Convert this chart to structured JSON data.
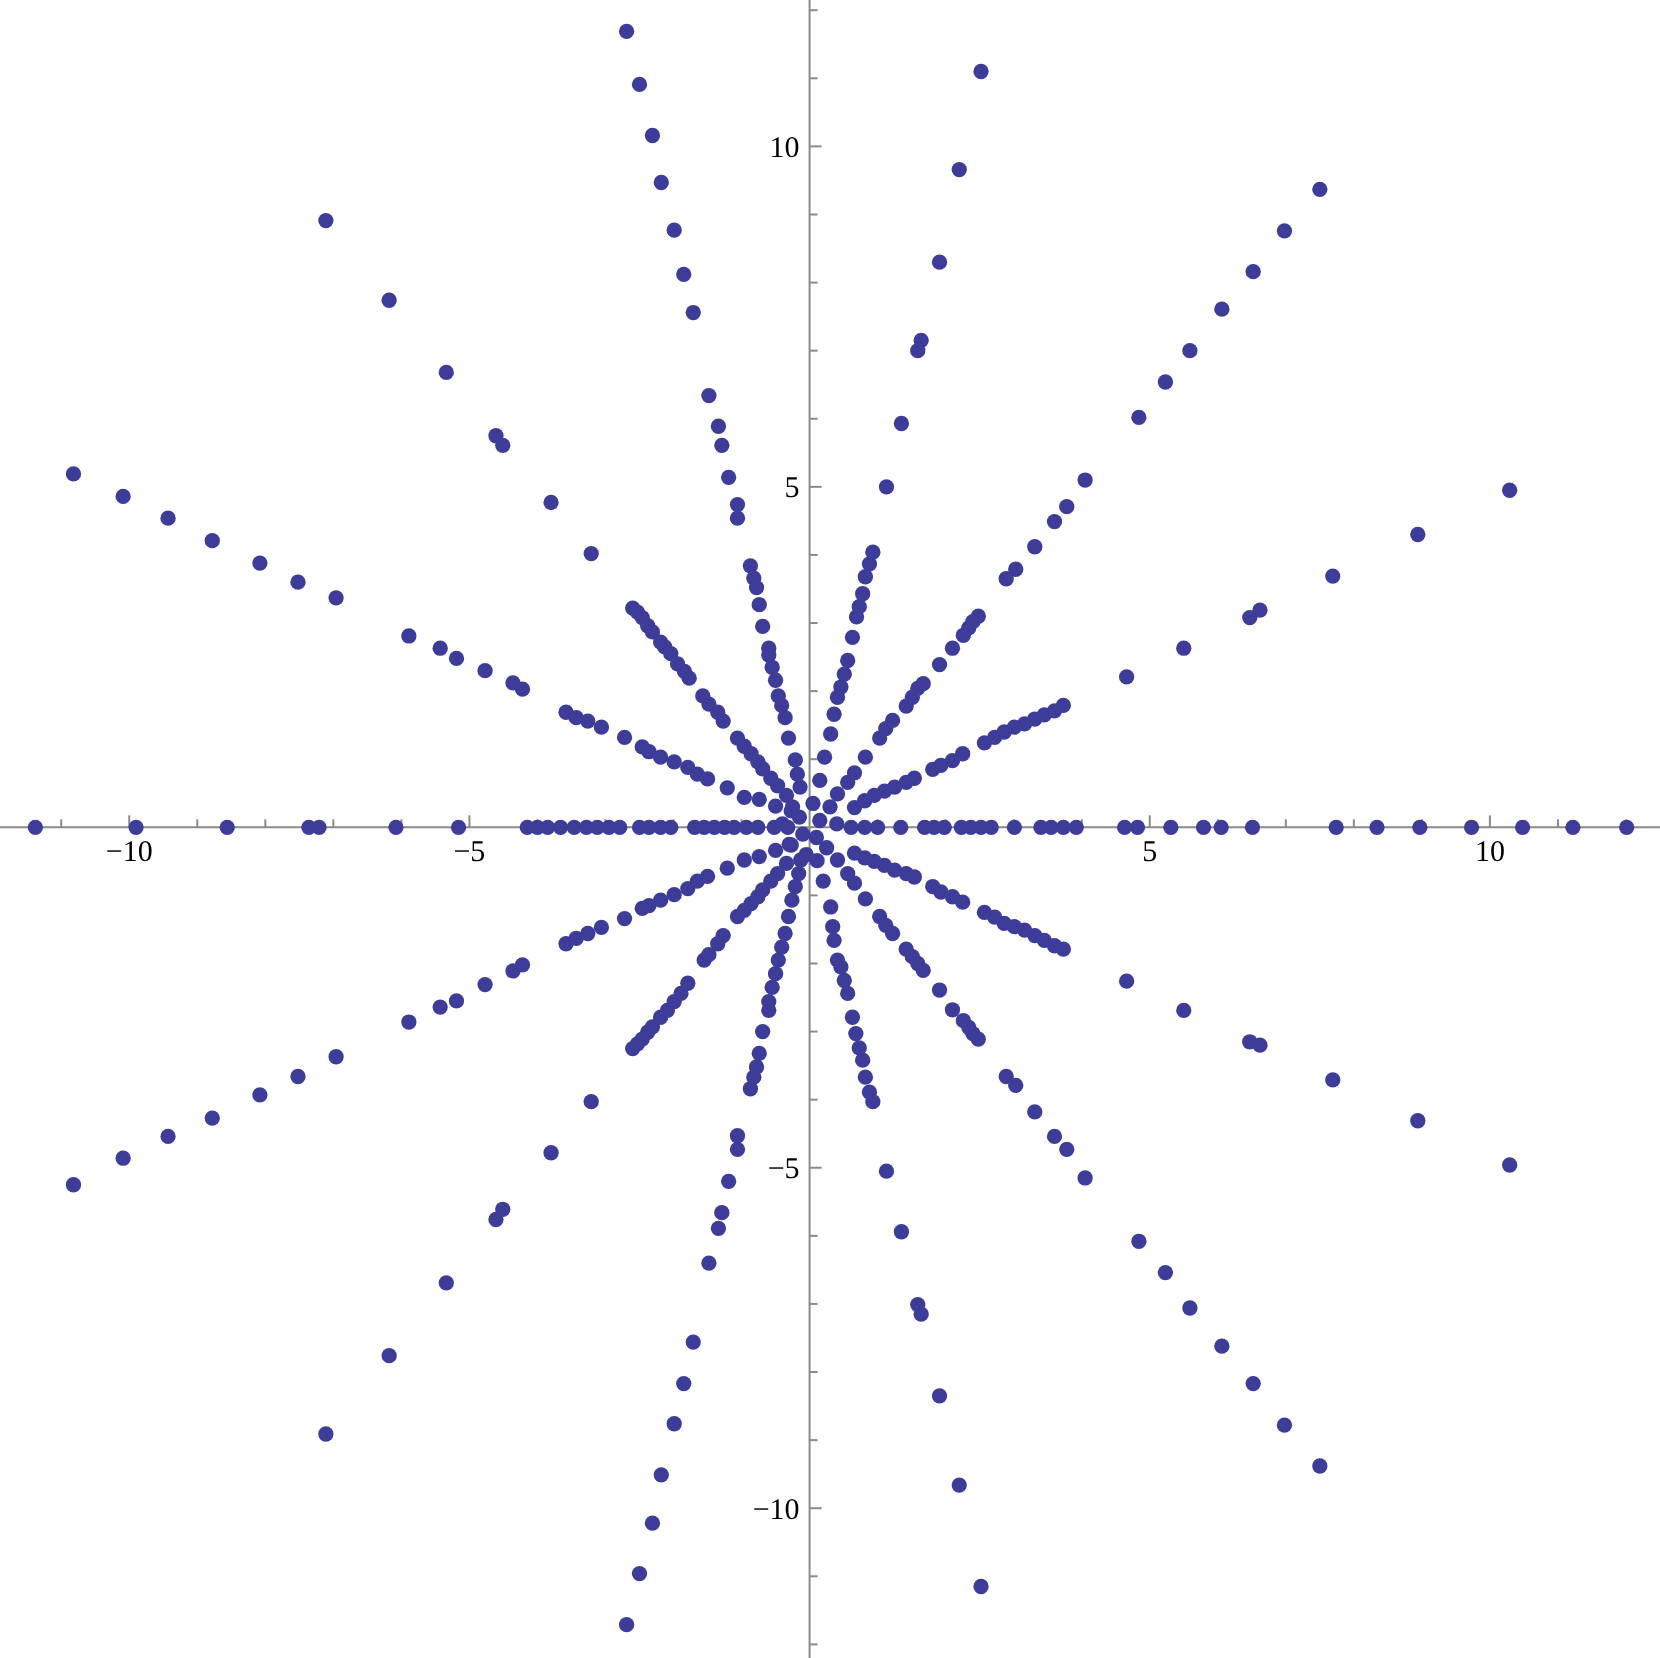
{
  "chart_data": {
    "type": "scatter",
    "color": "#3d3d99",
    "marker": "circle",
    "xlim": [
      -11.9,
      12.5
    ],
    "ylim": [
      -12.2,
      12.15
    ],
    "xticks": [
      {
        "value": -11,
        "label": null
      },
      {
        "value": -10,
        "label": "−10"
      },
      {
        "value": -9,
        "label": null
      },
      {
        "value": -8,
        "label": null
      },
      {
        "value": -7,
        "label": null
      },
      {
        "value": -6,
        "label": null
      },
      {
        "value": -5,
        "label": "−5"
      },
      {
        "value": -4,
        "label": null
      },
      {
        "value": -3,
        "label": null
      },
      {
        "value": -2,
        "label": null
      },
      {
        "value": -1,
        "label": null
      },
      {
        "value": 1,
        "label": null
      },
      {
        "value": 2,
        "label": null
      },
      {
        "value": 3,
        "label": null
      },
      {
        "value": 4,
        "label": null
      },
      5,
      {
        "value": 6,
        "label": null
      },
      {
        "value": 7,
        "label": null
      },
      {
        "value": 8,
        "label": null
      },
      {
        "value": 9,
        "label": null
      },
      10,
      {
        "value": 11,
        "label": null
      },
      {
        "value": 12,
        "label": null
      }
    ],
    "yticks": [
      {
        "value": -12,
        "label": null
      },
      {
        "value": -11,
        "label": null
      },
      {
        "value": -10,
        "label": "−10"
      },
      {
        "value": -9,
        "label": null
      },
      {
        "value": -8,
        "label": null
      },
      {
        "value": -7,
        "label": null
      },
      {
        "value": -6,
        "label": null
      },
      {
        "value": -5,
        "label": "−5"
      },
      {
        "value": -4,
        "label": null
      },
      {
        "value": -3,
        "label": null
      },
      {
        "value": -2,
        "label": null
      },
      {
        "value": -1,
        "label": null
      },
      {
        "value": 1,
        "label": null
      },
      {
        "value": 2,
        "label": null
      },
      {
        "value": 3,
        "label": null
      },
      {
        "value": 4,
        "label": null
      },
      5,
      {
        "value": 6,
        "label": null
      },
      {
        "value": 7,
        "label": null
      },
      {
        "value": 8,
        "label": null
      },
      {
        "value": 9,
        "label": null
      },
      10,
      {
        "value": 11,
        "label": null
      },
      {
        "value": 12,
        "label": null
      }
    ],
    "x": [
      -2.69,
      -2.5,
      -2.31,
      -2.18,
      -1.99,
      -1.85,
      -1.71,
      -1.48,
      -1.34,
      -1.29,
      -1.19,
      -1.06,
      -1.06,
      -0.87,
      -0.82,
      -0.78,
      -0.74,
      -0.69,
      -0.6,
      -0.6,
      -0.55,
      -0.5,
      -0.46,
      -0.41,
      -0.36,
      -0.31,
      -0.21,
      -0.18,
      -0.14,
      -7.11,
      -6.18,
      -5.34,
      -4.61,
      -4.51,
      -3.8,
      -3.21,
      -2.6,
      -2.53,
      -2.46,
      -2.38,
      -2.31,
      -2.19,
      -2.13,
      -2.04,
      -1.94,
      -1.84,
      -1.77,
      -1.57,
      -1.48,
      -1.35,
      -1.27,
      -1.06,
      -0.96,
      -0.86,
      -0.76,
      -0.69,
      -0.57,
      -0.47,
      -0.34,
      -10.82,
      -10.09,
      -9.43,
      -8.78,
      -8.08,
      -7.52,
      -6.96,
      -5.89,
      -5.43,
      -5.19,
      -4.77,
      -4.36,
      -4.22,
      -3.58,
      -3.43,
      -3.26,
      -3.06,
      -2.72,
      -2.46,
      -2.36,
      -2.19,
      -1.99,
      -1.79,
      -1.65,
      -1.5,
      -1.21,
      -0.96,
      -0.74,
      -0.5,
      -0.27,
      -11.38,
      -9.9,
      -8.56,
      -7.36,
      -7.21,
      -6.08,
      -5.16,
      -4.15,
      -4,
      -3.85,
      -3.66,
      -3.46,
      -3.28,
      -3.12,
      -2.95,
      -2.79,
      -2.5,
      -2.36,
      -2.19,
      -2.04,
      -1.69,
      -1.55,
      -1.4,
      -1.25,
      -1.11,
      -0.93,
      -0.76,
      -0.52,
      -0.32,
      0.61,
      0.81,
      1,
      1.34,
      1.69,
      1.83,
      1.98,
      2.23,
      2.37,
      2.52,
      2.67,
      3.01,
      3.4,
      3.55,
      3.73,
      3.92,
      4.63,
      4.82,
      5.31,
      5.79,
      6.05,
      6.51,
      7.74,
      8.34,
      8.97,
      9.73,
      10.48,
      11.22,
      12.01,
      2.52,
      2.2,
      1.91,
      1.64,
      1.59,
      1.35,
      1.13,
      0.93,
      0.88,
      0.82,
      0.78,
      0.73,
      0.69,
      0.63,
      0.56,
      0.51,
      0.46,
      0.41,
      0.36,
      0.31,
      0.22,
      0.15,
      7.5,
      6.98,
      6.52,
      6.06,
      5.59,
      5.23,
      4.84,
      4.05,
      3.78,
      3.6,
      3.31,
      3.03,
      2.89,
      2.48,
      2.4,
      2.34,
      2.26,
      2.1,
      1.91,
      1.67,
      1.59,
      1.51,
      1.42,
      1.22,
      1.12,
      1.03,
      0.82,
      0.66,
      0.56,
      0.41,
      10.29,
      8.94,
      7.69,
      6.62,
      6.47,
      5.5,
      4.66,
      3.73,
      3.6,
      3.45,
      3.31,
      3.16,
      3.01,
      2.86,
      2.72,
      2.57,
      2.25,
      2.1,
      1.93,
      1.81,
      1.54,
      1.42,
      1.25,
      1.1,
      0.95,
      0.81,
      0.66,
      -10.82,
      -10.09,
      -9.43,
      -8.78,
      -8.08,
      -7.52,
      -6.96,
      -5.89,
      -5.43,
      -5.19,
      -4.77,
      -4.36,
      -4.22,
      -3.58,
      -3.43,
      -3.26,
      -3.06,
      -2.72,
      -2.46,
      -2.36,
      -2.19,
      -1.99,
      -1.79,
      -1.65,
      -1.5,
      -1.21,
      -0.96,
      -0.74,
      -0.5,
      -0.27,
      -7.11,
      -6.18,
      -5.34,
      -4.61,
      -4.51,
      -3.8,
      -3.21,
      -2.6,
      -2.53,
      -2.46,
      -2.38,
      -2.31,
      -2.19,
      -2.09,
      -1.99,
      -1.89,
      -1.79,
      -1.55,
      -1.48,
      -1.35,
      -1.27,
      -1.06,
      -0.96,
      -0.86,
      -0.76,
      -0.69,
      -0.57,
      -0.47,
      -0.34,
      -2.69,
      -2.5,
      -2.31,
      -2.18,
      -1.99,
      -1.85,
      -1.71,
      -1.48,
      -1.34,
      -1.29,
      -1.19,
      -1.06,
      -1.06,
      -0.87,
      -0.82,
      -0.78,
      -0.74,
      -0.69,
      -0.6,
      -0.6,
      -0.55,
      -0.5,
      -0.46,
      -0.41,
      -0.36,
      -0.31,
      -0.26,
      -0.21,
      -0.16,
      -0.13,
      2.52,
      2.2,
      1.91,
      1.64,
      1.59,
      1.35,
      1.13,
      0.93,
      0.88,
      0.82,
      0.78,
      0.73,
      0.68,
      0.63,
      0.56,
      0.51,
      0.46,
      0.41,
      0.36,
      0.34,
      0.31,
      0.2,
      0.11,
      7.5,
      6.98,
      6.52,
      6.06,
      5.59,
      5.23,
      4.84,
      4.05,
      3.78,
      3.6,
      3.31,
      3.03,
      2.89,
      2.48,
      2.4,
      2.34,
      2.26,
      2.1,
      1.91,
      1.67,
      1.59,
      1.51,
      1.42,
      1.22,
      1.12,
      1.03,
      0.82,
      0.66,
      0.56,
      0.41,
      10.29,
      8.94,
      7.69,
      6.62,
      6.47,
      5.5,
      4.66,
      3.73,
      3.6,
      3.45,
      3.31,
      3.16,
      3.01,
      2.86,
      2.72,
      2.57,
      2.25,
      2.1,
      1.93,
      1.81,
      1.54,
      1.42,
      1.25,
      1.1,
      0.95,
      0.81,
      0.66,
      0.05,
      0.3,
      0.4,
      0.25,
      -0.05,
      -0.3,
      -0.4,
      -0.25,
      0.15,
      -0.1,
      0.1,
      -0.15
    ],
    "values": [
      11.69,
      10.91,
      10.16,
      9.47,
      8.77,
      8.12,
      7.56,
      6.34,
      5.89,
      5.61,
      5.14,
      4.74,
      4.54,
      3.84,
      3.66,
      3.52,
      3.27,
      2.95,
      2.63,
      2.53,
      2.35,
      2.16,
      1.93,
      1.79,
      1.61,
      1.31,
      0.99,
      0.78,
      0.59,
      8.91,
      7.74,
      6.68,
      5.75,
      5.61,
      4.77,
      4.02,
      3.22,
      3.16,
      3.08,
      2.96,
      2.87,
      2.72,
      2.65,
      2.55,
      2.4,
      2.29,
      2.19,
      1.93,
      1.81,
      1.69,
      1.56,
      1.31,
      1.19,
      1.08,
      0.96,
      0.86,
      0.72,
      0.61,
      0.47,
      5.19,
      4.86,
      4.54,
      4.21,
      3.88,
      3.6,
      3.37,
      2.81,
      2.63,
      2.48,
      2.3,
      2.12,
      2.03,
      1.69,
      1.61,
      1.56,
      1.47,
      1.32,
      1.18,
      1.11,
      1.03,
      0.96,
      0.88,
      0.78,
      0.71,
      0.58,
      0.44,
      0.41,
      0.31,
      0.24,
      0,
      0,
      0,
      0,
      0,
      0,
      0,
      0,
      0,
      0,
      0,
      0,
      0,
      0,
      0,
      0,
      0,
      0,
      0,
      0,
      0,
      0,
      0,
      0,
      0,
      0,
      0,
      0,
      0,
      0,
      0,
      0,
      0,
      0,
      0,
      0,
      0,
      0,
      0,
      0,
      0,
      0,
      0,
      0,
      0,
      0,
      0,
      0,
      0,
      0,
      0,
      0,
      0,
      0,
      0,
      0,
      0,
      0,
      11.1,
      9.66,
      8.3,
      7.15,
      7,
      5.93,
      5,
      4.04,
      3.87,
      3.68,
      3.43,
      3.24,
      3.09,
      2.79,
      2.45,
      2.25,
      2.06,
      1.91,
      1.66,
      1.37,
      1.03,
      0.69,
      9.37,
      8.76,
      8.16,
      7.61,
      7,
      6.54,
      6.02,
      5.1,
      4.71,
      4.49,
      4.12,
      3.79,
      3.65,
      3.1,
      3.02,
      2.93,
      2.82,
      2.63,
      2.39,
      2.11,
      2.04,
      1.91,
      1.78,
      1.57,
      1.45,
      1.31,
      1.03,
      0.8,
      0.66,
      0.49,
      4.95,
      4.3,
      3.69,
      3.19,
      3.08,
      2.63,
      2.21,
      1.79,
      1.71,
      1.65,
      1.59,
      1.52,
      1.47,
      1.4,
      1.32,
      1.24,
      1.08,
      0.98,
      0.91,
      0.85,
      0.72,
      0.66,
      0.59,
      0.53,
      0.47,
      0.39,
      0.29,
      -5.25,
      -4.86,
      -4.54,
      -4.27,
      -3.93,
      -3.66,
      -3.37,
      -2.86,
      -2.64,
      -2.55,
      -2.31,
      -2.11,
      -2.02,
      -1.71,
      -1.63,
      -1.56,
      -1.47,
      -1.34,
      -1.19,
      -1.15,
      -1.07,
      -0.99,
      -0.9,
      -0.79,
      -0.72,
      -0.6,
      -0.48,
      -0.43,
      -0.34,
      -0.26,
      -8.91,
      -7.76,
      -6.69,
      -5.76,
      -5.61,
      -4.78,
      -4.03,
      -3.25,
      -3.18,
      -3.11,
      -3.01,
      -2.93,
      -2.79,
      -2.69,
      -2.56,
      -2.44,
      -2.29,
      -1.95,
      -1.87,
      -1.71,
      -1.59,
      -1.31,
      -1.22,
      -1.12,
      -1.02,
      -0.92,
      -0.79,
      -0.68,
      -0.53,
      -11.71,
      -10.96,
      -10.22,
      -9.51,
      -8.76,
      -8.17,
      -7.56,
      -6.4,
      -5.89,
      -5.66,
      -5.2,
      -4.73,
      -4.53,
      -3.84,
      -3.67,
      -3.52,
      -3.32,
      -3,
      -2.69,
      -2.56,
      -2.35,
      -2.15,
      -1.95,
      -1.76,
      -1.56,
      -1.31,
      -1.07,
      -0.87,
      -0.68,
      -0.48,
      -11.15,
      -9.66,
      -8.35,
      -7.15,
      -7.01,
      -5.94,
      -5.05,
      -4.03,
      -3.89,
      -3.67,
      -3.42,
      -3.24,
      -3.03,
      -2.79,
      -2.44,
      -2.25,
      -2.05,
      -1.95,
      -1.66,
      -1.46,
      -1.17,
      -0.79,
      -0.49,
      -9.38,
      -8.78,
      -8.17,
      -7.62,
      -7.06,
      -6.54,
      -6.08,
      -5.15,
      -4.73,
      -4.54,
      -4.18,
      -3.79,
      -3.66,
      -3.11,
      -3.03,
      -2.94,
      -2.84,
      -2.68,
      -2.39,
      -2.1,
      -2,
      -1.9,
      -1.79,
      -1.56,
      -1.44,
      -1.31,
      -1.05,
      -0.82,
      -0.68,
      -0.48,
      -4.96,
      -4.31,
      -3.71,
      -3.2,
      -3.15,
      -2.69,
      -2.26,
      -1.79,
      -1.74,
      -1.66,
      -1.59,
      -1.51,
      -1.46,
      -1.41,
      -1.32,
      -1.25,
      -1.1,
      -1.02,
      -0.95,
      -0.87,
      -0.73,
      -0.68,
      -0.63,
      -0.56,
      -0.5,
      -0.45,
      -0.38,
      0.35,
      0.3,
      0.05,
      -0.3,
      -0.4,
      -0.25,
      0.05,
      0.3,
      0.1,
      -0.1,
      -0.15,
      0.15
    ]
  }
}
